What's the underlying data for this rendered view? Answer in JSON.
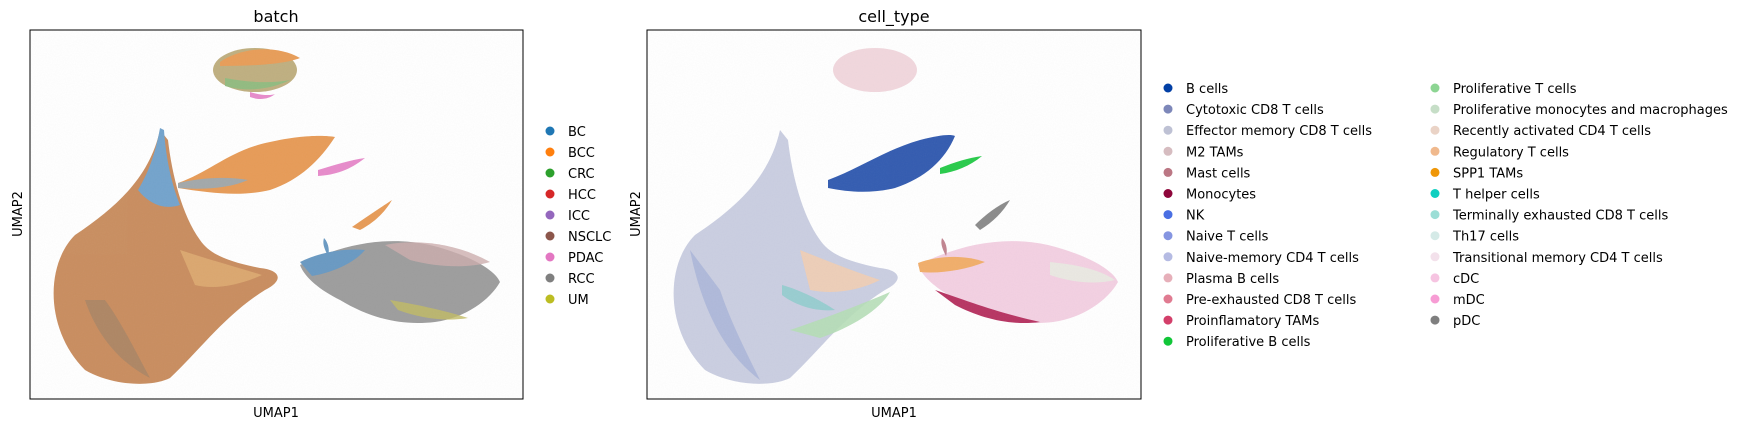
{
  "chart_data": [
    {
      "type": "scatter",
      "title": "batch",
      "xlabel": "UMAP1",
      "ylabel": "UMAP2",
      "ticks": "none",
      "legend_placement": "right",
      "legend": [
        {
          "label": "BC",
          "color": "#1f77b4"
        },
        {
          "label": "BCC",
          "color": "#ff7f0e"
        },
        {
          "label": "CRC",
          "color": "#2ca02c"
        },
        {
          "label": "HCC",
          "color": "#d62728"
        },
        {
          "label": "ICC",
          "color": "#9467bd"
        },
        {
          "label": "NSCLC",
          "color": "#8c564b"
        },
        {
          "label": "PDAC",
          "color": "#e377c2"
        },
        {
          "label": "RCC",
          "color": "#7f7f7f"
        },
        {
          "label": "UM",
          "color": "#bcbd22"
        }
      ]
    },
    {
      "type": "scatter",
      "title": "cell_type",
      "xlabel": "UMAP1",
      "ylabel": "UMAP2",
      "ticks": "none",
      "legend_placement": "right",
      "legend": [
        {
          "label": "B cells",
          "color": "#023fa5"
        },
        {
          "label": "Cytotoxic CD8 T cells",
          "color": "#7d87b9"
        },
        {
          "label": "Effector memory CD8 T cells",
          "color": "#bec1d4"
        },
        {
          "label": "M2 TAMs",
          "color": "#d6bcc0"
        },
        {
          "label": "Mast cells",
          "color": "#bb7784"
        },
        {
          "label": "Monocytes",
          "color": "#8e063b"
        },
        {
          "label": "NK",
          "color": "#4a6fe3"
        },
        {
          "label": "Naive T cells",
          "color": "#8595e1"
        },
        {
          "label": "Naive-memory CD4 T cells",
          "color": "#b5bbe3"
        },
        {
          "label": "Plasma B cells",
          "color": "#e6afb9"
        },
        {
          "label": "Pre-exhausted CD8 T cells",
          "color": "#e07b91"
        },
        {
          "label": "Proinflamatory TAMs",
          "color": "#d33f6a"
        },
        {
          "label": "Proliferative B cells",
          "color": "#11c638"
        },
        {
          "label": "Proliferative T cells",
          "color": "#8dd593"
        },
        {
          "label": "Proliferative monocytes and macrophages",
          "color": "#c6dec7"
        },
        {
          "label": "Recently activated CD4 T cells",
          "color": "#ead3c6"
        },
        {
          "label": "Regulatory T cells",
          "color": "#f0b98d"
        },
        {
          "label": "SPP1 TAMs",
          "color": "#ef9708"
        },
        {
          "label": "T helper cells",
          "color": "#0fcfc0"
        },
        {
          "label": "Terminally exhausted CD8 T cells",
          "color": "#9cded6"
        },
        {
          "label": "Th17 cells",
          "color": "#d5eae7"
        },
        {
          "label": "Transitional memory CD4 T cells",
          "color": "#f3e1eb"
        },
        {
          "label": "cDC",
          "color": "#f6c4e1"
        },
        {
          "label": "mDC",
          "color": "#f79cd4"
        },
        {
          "label": "pDC",
          "color": "#7f7f7f"
        }
      ]
    }
  ]
}
